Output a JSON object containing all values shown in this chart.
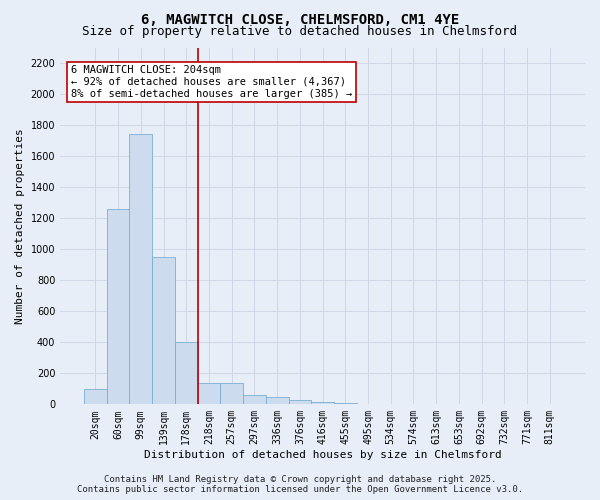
{
  "title_line1": "6, MAGWITCH CLOSE, CHELMSFORD, CM1 4YE",
  "title_line2": "Size of property relative to detached houses in Chelmsford",
  "xlabel": "Distribution of detached houses by size in Chelmsford",
  "ylabel": "Number of detached properties",
  "bar_color": "#ccdcee",
  "bar_edge_color": "#7bafd4",
  "categories": [
    "20sqm",
    "60sqm",
    "99sqm",
    "139sqm",
    "178sqm",
    "218sqm",
    "257sqm",
    "297sqm",
    "336sqm",
    "376sqm",
    "416sqm",
    "455sqm",
    "495sqm",
    "534sqm",
    "574sqm",
    "613sqm",
    "653sqm",
    "692sqm",
    "732sqm",
    "771sqm",
    "811sqm"
  ],
  "values": [
    100,
    1260,
    1740,
    950,
    400,
    140,
    140,
    60,
    50,
    30,
    15,
    8,
    5,
    3,
    2,
    2,
    1,
    1,
    1,
    1,
    1
  ],
  "ylim": [
    0,
    2300
  ],
  "yticks": [
    0,
    200,
    400,
    600,
    800,
    1000,
    1200,
    1400,
    1600,
    1800,
    2000,
    2200
  ],
  "vline_x": 4.5,
  "vline_color": "#bb0000",
  "annotation_text": "6 MAGWITCH CLOSE: 204sqm\n← 92% of detached houses are smaller (4,367)\n8% of semi-detached houses are larger (385) →",
  "annotation_box_facecolor": "#ffffff",
  "annotation_box_edgecolor": "#bb0000",
  "footer_line1": "Contains HM Land Registry data © Crown copyright and database right 2025.",
  "footer_line2": "Contains public sector information licensed under the Open Government Licence v3.0.",
  "background_color": "#e8eef8",
  "grid_color": "#d0d8e8",
  "title_fontsize": 10,
  "subtitle_fontsize": 9,
  "axis_label_fontsize": 8,
  "tick_fontsize": 7,
  "annotation_fontsize": 7.5,
  "footer_fontsize": 6.5
}
